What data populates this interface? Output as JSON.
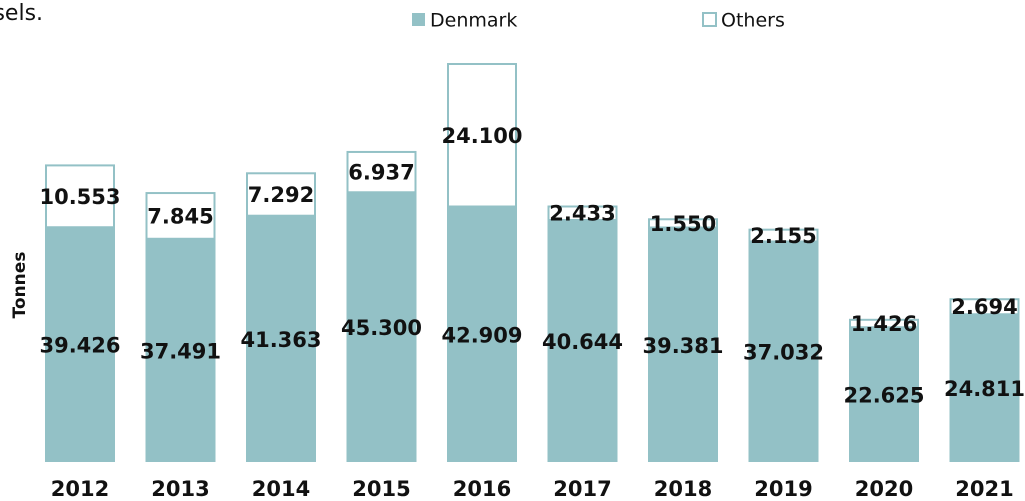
{
  "chart_data": {
    "type": "stacked_bar",
    "caption": "ssels.",
    "y_label": "Tonnes",
    "categories": [
      "2012",
      "2013",
      "2014",
      "2015",
      "2016",
      "2017",
      "2018",
      "2019",
      "2020",
      "2021"
    ],
    "series": [
      {
        "name": "Denmark",
        "color": "#93c1c6",
        "fill": "solid",
        "values": [
          39426,
          37491,
          41363,
          45300,
          42909,
          40644,
          39381,
          37032,
          22625,
          24811
        ],
        "value_labels": [
          "39.426",
          "37.491",
          "41.363",
          "45.300",
          "42.909",
          "40.644",
          "39.381",
          "37.032",
          "22.625",
          "24.811"
        ]
      },
      {
        "name": "Others",
        "color": "#93c1c6",
        "fill": "outline",
        "values": [
          10553,
          7845,
          7292,
          6937,
          24100,
          2433,
          1550,
          2155,
          1426,
          2694
        ],
        "value_labels": [
          "10.553",
          "7.845",
          "7.292",
          "6.937",
          "24.100",
          "2.433",
          "1.550",
          "2.155",
          "1.426",
          "2.694"
        ]
      }
    ]
  }
}
